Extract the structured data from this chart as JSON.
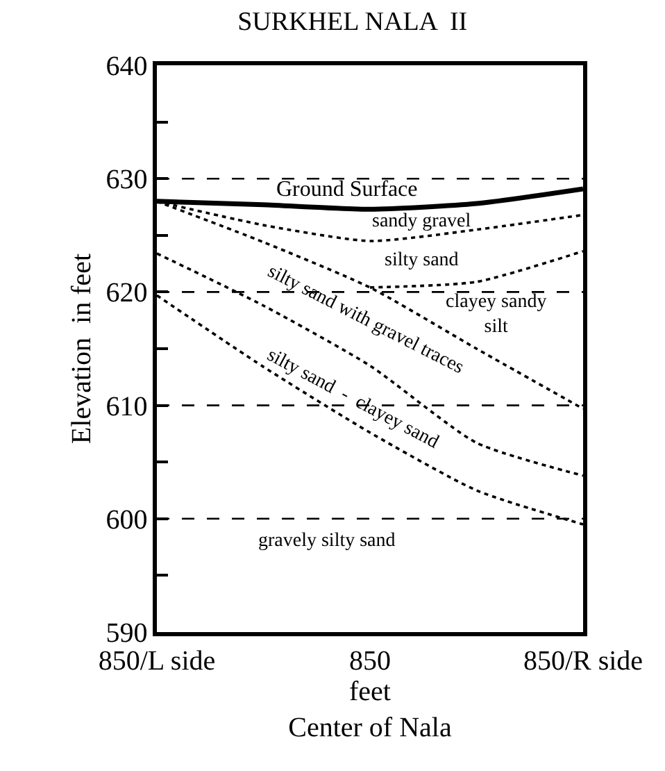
{
  "chart_data": {
    "type": "line",
    "title": "SURKHEL NALA  II",
    "xlabel": "feet\nCenter of Nala",
    "ylabel": "Elevation  in feet",
    "categories": [
      "850/L side",
      null,
      "850",
      null,
      "850/R side"
    ],
    "ylim": [
      590,
      640
    ],
    "yticks": [
      590,
      {
        "value": 595,
        "label": null
      },
      600,
      {
        "value": 605,
        "label": null
      },
      610,
      {
        "value": 615,
        "label": null
      },
      620,
      {
        "value": 625,
        "label": null
      },
      630,
      {
        "value": 635,
        "label": null
      },
      640
    ],
    "grid": false,
    "marker": "none",
    "series": [
      {
        "color": "#000000",
        "line_style": "solid",
        "values": [
          628.0,
          627.7,
          627.3,
          627.8,
          629.1
        ]
      },
      {
        "color": "#000000",
        "line_style": "dotted",
        "values": [
          628.0,
          625.9,
          624.5,
          625.5,
          626.8
        ]
      },
      {
        "color": "#000000",
        "line_style": "dotted",
        "values": [
          628.0,
          624.4,
          620.4,
          615.0,
          609.7
        ]
      },
      {
        "color": "#000000",
        "line_style": "dotted",
        "values": [
          null,
          null,
          620.4,
          620.9,
          623.6
        ]
      },
      {
        "color": "#000000",
        "line_style": "dotted",
        "values": [
          623.4,
          618.8,
          613.5,
          606.7,
          603.8
        ]
      },
      {
        "color": "#000000",
        "line_style": "dotted",
        "values": [
          619.7,
          613.4,
          607.6,
          602.5,
          599.5
        ]
      }
    ],
    "ref_lines": [
      {
        "axis": "y",
        "value": 600,
        "color": "#000000",
        "line_style": "dashed"
      },
      {
        "axis": "y",
        "value": 610,
        "color": "#000000",
        "line_style": "dashed"
      },
      {
        "axis": "y",
        "value": 620,
        "color": "#000000",
        "line_style": "dashed"
      },
      {
        "axis": "y",
        "value": 630,
        "color": "#000000",
        "line_style": "dashed"
      }
    ],
    "annotations": [
      "Ground Surface",
      "sandy gravel",
      "silty sand",
      "clayey sandy\nsilt",
      "silty sand with gravel traces",
      "silty sand  -  clayey sand",
      "gravely silty sand"
    ]
  }
}
